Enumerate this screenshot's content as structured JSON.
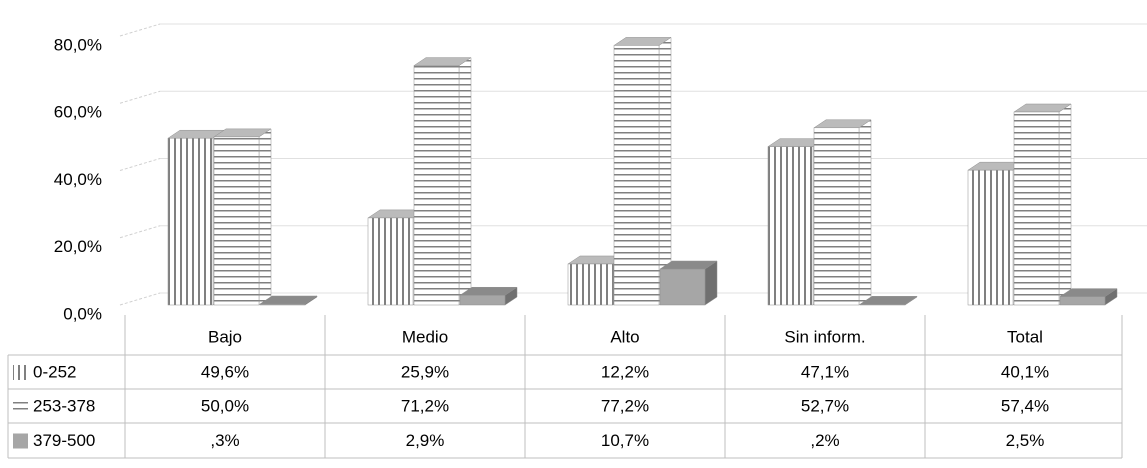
{
  "chart_data": {
    "type": "bar3d",
    "categories": [
      "Bajo",
      "Medio",
      "Alto",
      "Sin inform.",
      "Total"
    ],
    "series": [
      {
        "name": "0-252",
        "color": "#808080",
        "pattern": "vertical",
        "values": [
          49.6,
          25.9,
          12.2,
          47.1,
          40.1
        ],
        "value_labels": [
          "49,6%",
          "25,9%",
          "12,2%",
          "47,1%",
          "40,1%"
        ]
      },
      {
        "name": "253-378",
        "color": "#808080",
        "pattern": "horizontal",
        "values": [
          50.0,
          71.2,
          77.2,
          52.7,
          57.4
        ],
        "value_labels": [
          "50,0%",
          "71,2%",
          "77,2%",
          "52,7%",
          "57,4%"
        ]
      },
      {
        "name": "379-500",
        "color": "#a6a6a6",
        "pattern": "solid",
        "values": [
          0.3,
          2.9,
          10.7,
          0.2,
          2.5
        ],
        "value_labels": [
          ",3%",
          "2,9%",
          "10,7%",
          ",2%",
          "2,5%"
        ]
      }
    ],
    "ylim": [
      0,
      80
    ],
    "yticks": [
      {
        "value": 0,
        "label": "0,0%"
      },
      {
        "value": 20,
        "label": "20,0%"
      },
      {
        "value": 40,
        "label": "40,0%"
      },
      {
        "value": 60,
        "label": "60,0%"
      },
      {
        "value": 80,
        "label": "80,0%"
      }
    ],
    "grid": true,
    "data_table": true
  }
}
